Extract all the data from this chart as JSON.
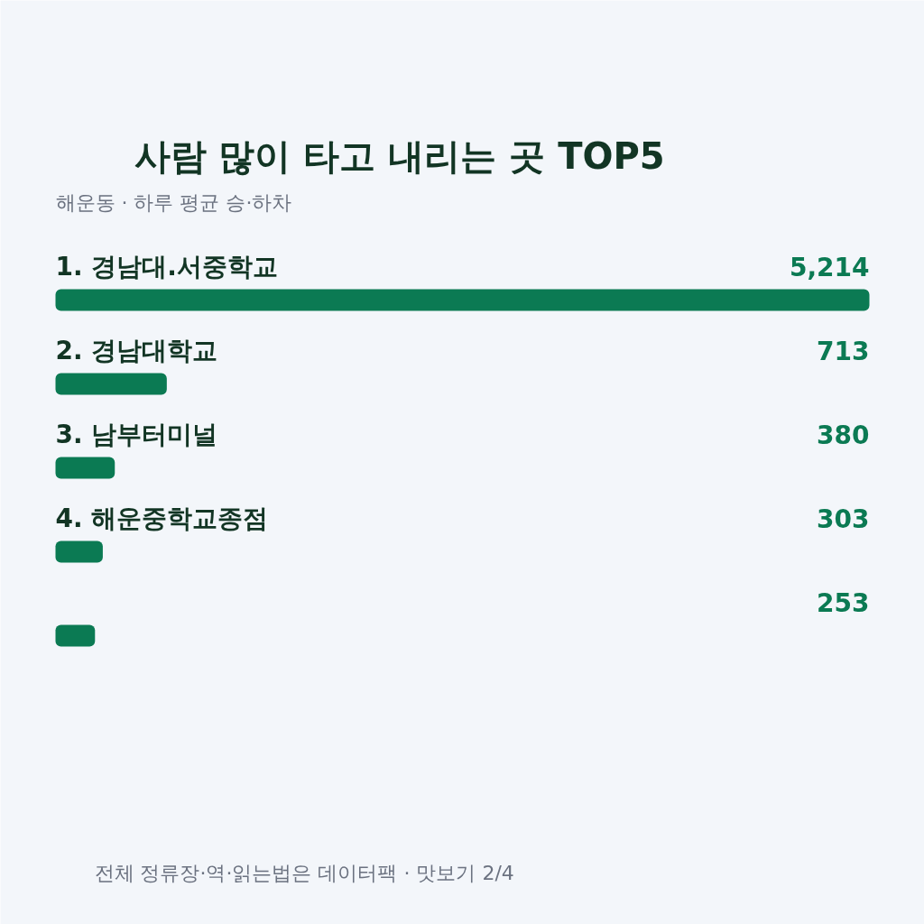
{
  "chart_data": {
    "type": "bar",
    "orientation": "horizontal",
    "title": "사람 많이 타고 내리는 곳 TOP5",
    "subtitle": "해운동 · 하루 평균 승·하차",
    "categories": [
      "1. 경남대.서중학교",
      "2. 경남대학교",
      "3. 남부터미널",
      "4. 해운중학교종점",
      null
    ],
    "values": [
      5214,
      713,
      380,
      303,
      253
    ],
    "value_labels": [
      "5,214",
      "713",
      "380",
      "303",
      "253"
    ],
    "color": "#0b7a53",
    "annotations": [
      "전체 정류장·역·읽는법은 데이터팩 · 맛보기 2/4"
    ]
  }
}
